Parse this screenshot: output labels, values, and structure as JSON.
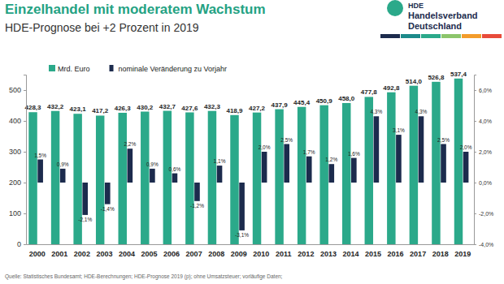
{
  "chart_data": {
    "type": "bar",
    "title": "Einzelhandel mit moderatem Wachstum",
    "subtitle": "HDE-Prognose bei +2 Prozent in 2019",
    "annotations": [
      "HDE",
      "Handelsverband",
      "Deutschland"
    ],
    "source": "Quelle: Statistisches Bundesamt; HDE-Berechnungen; HDE-Prognose 2019 (p); ohne Umsatzsteuer; vorläufige Daten;",
    "categories": [
      "2000",
      "2001",
      "2002",
      "2003",
      "2004",
      "2005",
      "2006",
      "2007",
      "2008",
      "2009",
      "2010",
      "2011",
      "2012",
      "2013",
      "2014",
      "2015",
      "2016",
      "2017",
      "2018",
      "2019"
    ],
    "series": [
      {
        "name": "Mrd. Euro",
        "type": "bar",
        "color": "#2ba98a",
        "values": [
          428.3,
          432.2,
          423.1,
          417.2,
          426.3,
          430.2,
          432.7,
          427.6,
          432.3,
          418.9,
          427.2,
          437.9,
          445.4,
          450.9,
          458.0,
          477.8,
          492.8,
          514.0,
          526.8,
          537.4
        ],
        "value_labels": [
          "428,3",
          "432,2",
          "423,1",
          "417,2",
          "426,3",
          "430,2",
          "432,7",
          "427,6",
          "432,3",
          "418,9",
          "427,2",
          "437,9",
          "445,4",
          "450,9",
          "458,0",
          "477,8",
          "492,8",
          "514,0",
          "526,8",
          "537,4"
        ]
      },
      {
        "name": "nominale Veränderung zu Vorjahr",
        "type": "bar",
        "color": "#1c2b4d",
        "axis": "y2",
        "values": [
          1.5,
          0.9,
          -2.1,
          -1.4,
          2.2,
          0.9,
          0.6,
          -1.2,
          1.1,
          -3.1,
          2.0,
          2.5,
          1.7,
          1.2,
          1.6,
          4.3,
          3.1,
          4.3,
          2.5,
          2.0
        ],
        "value_labels": [
          "1,5%",
          "0,9%",
          "-2,1%",
          "-1,4%",
          "2,2%",
          "0,9%",
          "0,6%",
          "-1,2%",
          "1,1%",
          "-3,1%",
          "2,0%",
          "2,5%",
          "1,7%",
          "1,2%",
          "1,6%",
          "4,3%",
          "3,1%",
          "4,3%",
          "2,5%",
          "2,0%"
        ]
      }
    ],
    "ylim": [
      0,
      550
    ],
    "yticks": [
      0,
      100,
      200,
      300,
      400,
      500
    ],
    "y2lim": [
      -4,
      7
    ],
    "y2ticks": [
      {
        "value": -4,
        "label": "-4,0%"
      },
      {
        "value": -2,
        "label": "-2,0%"
      },
      {
        "value": 0,
        "label": "0,0%"
      },
      {
        "value": 2,
        "label": "2,0%"
      },
      {
        "value": 4,
        "label": "4,0%"
      },
      {
        "value": 6,
        "label": "6,0%"
      }
    ],
    "grid": false,
    "legend": "top",
    "data_labels": true
  }
}
